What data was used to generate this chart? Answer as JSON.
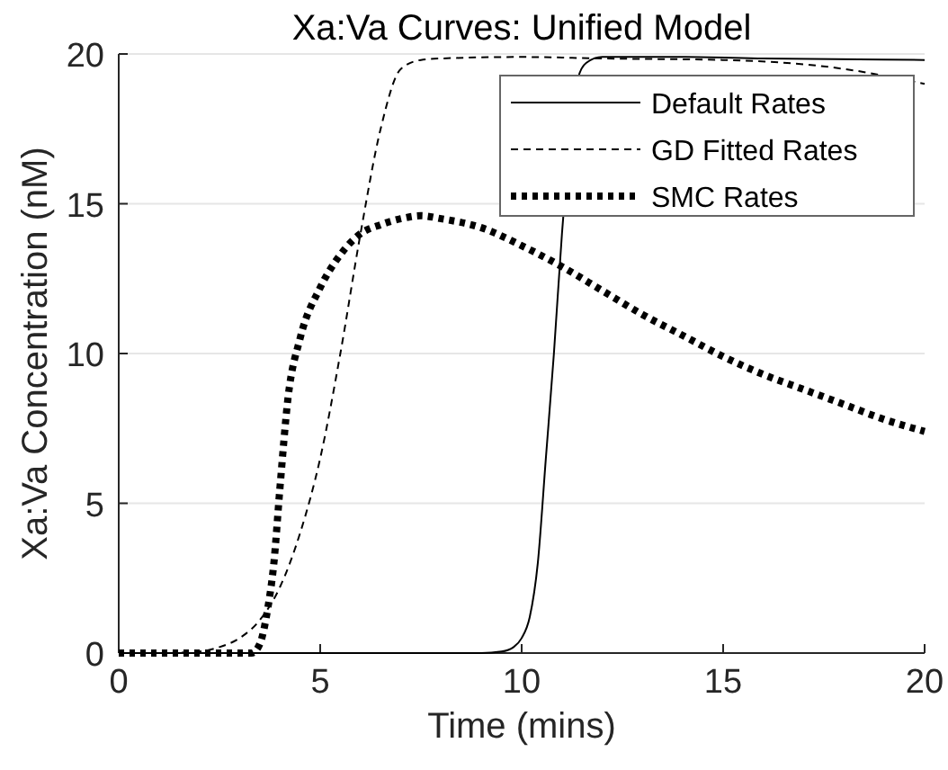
{
  "chart_data": {
    "type": "line",
    "title": "Xa:Va Curves: Unified Model",
    "xlabel": "Time (mins)",
    "ylabel": "Xa:Va Concentration (nM)",
    "xlim": [
      0,
      20
    ],
    "ylim": [
      0,
      20
    ],
    "xticks": [
      0,
      5,
      10,
      15,
      20
    ],
    "yticks": [
      0,
      5,
      10,
      15,
      20
    ],
    "grid": "y",
    "legend": "top right",
    "marker": "none",
    "series": [
      {
        "name": "Default Rates",
        "color": "#000000",
        "line_style": "solid",
        "x": [
          0,
          5,
          9,
          9.5,
          9.8,
          10,
          10.2,
          10.4,
          10.6,
          10.8,
          11,
          11.2,
          11.4,
          11.6,
          12,
          14,
          16,
          20
        ],
        "values": [
          0,
          0,
          0,
          0.05,
          0.2,
          0.5,
          1.2,
          3,
          6.5,
          10,
          14,
          null,
          19.2,
          19.7,
          19.9,
          19.9,
          19.85,
          19.8
        ]
      },
      {
        "name": "GD Fitted Rates",
        "color": "#000000",
        "line_style": "dashed",
        "x": [
          0,
          1,
          2,
          2.5,
          3,
          3.5,
          4,
          4.5,
          5,
          5.5,
          6,
          6.5,
          7,
          7.5,
          8,
          10,
          12,
          15,
          18,
          20
        ],
        "values": [
          0,
          0,
          0.05,
          0.2,
          0.5,
          1.1,
          2.2,
          4,
          6.5,
          10,
          14,
          17.5,
          19.5,
          19.8,
          19.85,
          19.9,
          19.85,
          19.8,
          19.5,
          19
        ]
      },
      {
        "name": "SMC Rates",
        "color": "#000000",
        "line_style": "dotted",
        "x": [
          0,
          3.3,
          3.5,
          3.7,
          3.85,
          4,
          4.2,
          4.5,
          5,
          5.5,
          6,
          6.5,
          7,
          7.5,
          8,
          9,
          10,
          11,
          12,
          13,
          14,
          15,
          16,
          17,
          18,
          19,
          20
        ],
        "values": [
          0,
          0,
          0.3,
          1.5,
          3,
          5.5,
          8.5,
          10.5,
          12.2,
          13.3,
          14,
          14.3,
          14.5,
          14.6,
          14.5,
          14.2,
          13.6,
          12.9,
          12.1,
          11.3,
          10.6,
          9.9,
          9.3,
          8.8,
          8.3,
          7.8,
          7.4
        ]
      }
    ]
  }
}
